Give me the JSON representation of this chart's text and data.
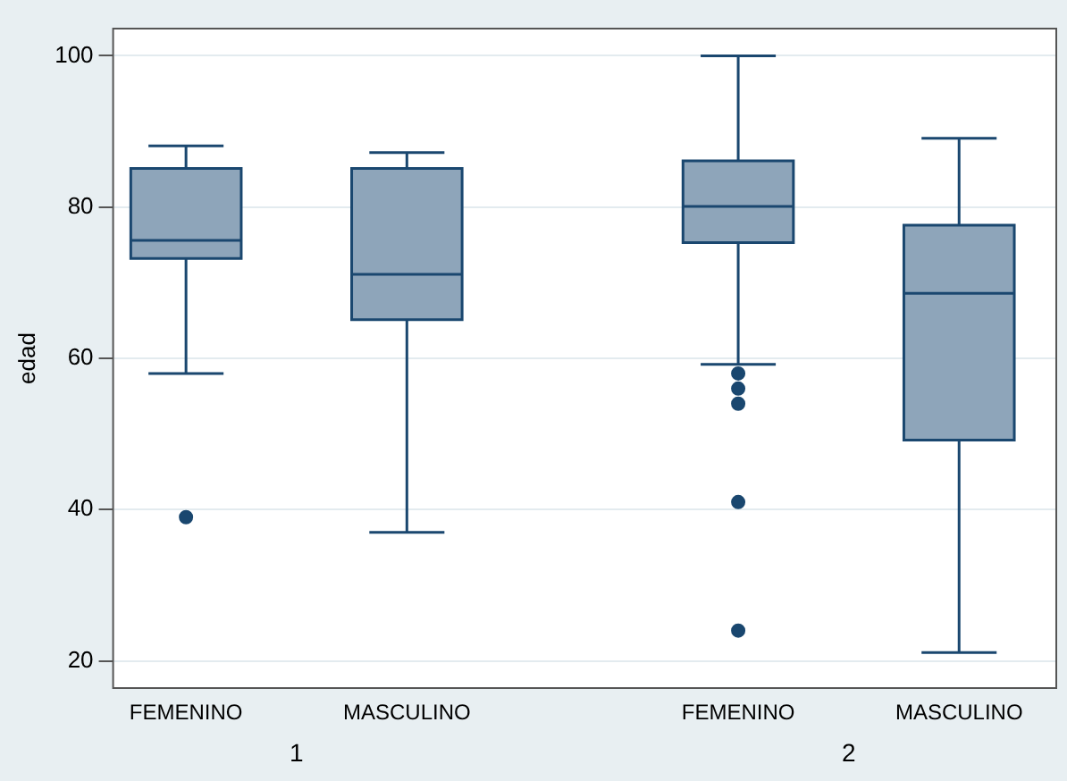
{
  "chart_data": {
    "type": "box",
    "ylabel": "edad",
    "categories": [
      "FEMENINO",
      "MASCULINO",
      "FEMENINO",
      "MASCULINO"
    ],
    "annotations": [
      "1",
      "2"
    ],
    "boxes": [
      {
        "low": 58,
        "q1": 73.2,
        "median": 75.6,
        "q3": 85.1,
        "high": 88.1,
        "outliers": [
          39
        ]
      },
      {
        "low": 37,
        "q1": 65.1,
        "median": 71.1,
        "q3": 85.1,
        "high": 87.2
      },
      {
        "low": 59.2,
        "q1": 75.3,
        "median": 80.1,
        "q3": 86.1,
        "high": 100,
        "outliers": [
          58,
          56,
          54,
          41,
          24
        ]
      },
      {
        "low": 21.1,
        "q1": 49.2,
        "median": 68.6,
        "q3": 77.6,
        "high": 89.1
      }
    ],
    "color": "#8ea5ba",
    "ylim": [
      16.4,
      103.6
    ],
    "yticks": [
      20,
      40,
      60,
      80,
      100
    ],
    "grid": "y",
    "legend": false,
    "marker": "circle"
  }
}
